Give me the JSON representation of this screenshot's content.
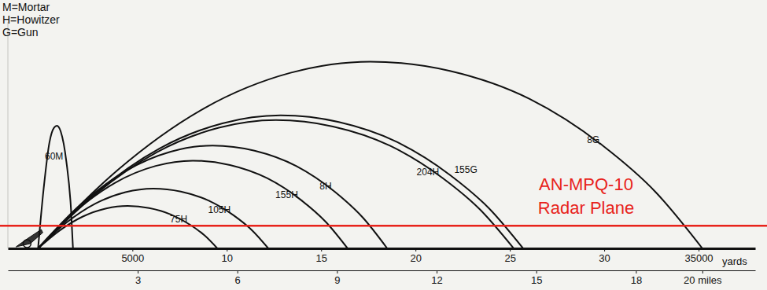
{
  "chart_data": {
    "type": "line",
    "notes": [
      "M=Mortar",
      "H=Howitzer",
      "G=Gun"
    ],
    "x_label": "yards",
    "xlim": [
      -1600,
      38000
    ],
    "xticks": [
      5000,
      {
        "value": 10000,
        "label": "10"
      },
      {
        "value": 15000,
        "label": "15"
      },
      {
        "value": 20000,
        "label": "20"
      },
      {
        "value": 25000,
        "label": "25"
      },
      {
        "value": 30000,
        "label": "30"
      },
      35000
    ],
    "x2lim": [
      -0.909,
      21.591
    ],
    "x2ticks": [
      3,
      6,
      9,
      12,
      15,
      18,
      {
        "value": 20,
        "label": "20 miles"
      }
    ],
    "ylim": [
      0,
      12000
    ],
    "tick_labels": "x",
    "grid": false,
    "series": [
      {
        "name": "60M",
        "color": "#111111",
        "x": [
          0,
          300,
          600,
          850,
          1000,
          1200,
          1500,
          1750,
          1850
        ],
        "values": [
          0,
          3200,
          5600,
          6400,
          6500,
          6200,
          4600,
          2000,
          0
        ]
      },
      {
        "name": "75H",
        "color": "#111111",
        "x": [
          0,
          1140,
          2375,
          3610,
          4750,
          5890,
          7030,
          8075,
          8835,
          9500
        ],
        "values": [
          0,
          945,
          1688,
          2115,
          2250,
          2138,
          1800,
          1238,
          675,
          0
        ]
      },
      {
        "name": "105H",
        "color": "#111111",
        "x": [
          0,
          1464,
          3050,
          4636,
          6100,
          7564,
          9028,
          10370,
          11346,
          12200
        ],
        "values": [
          0,
          1331,
          2378,
          2980,
          3170,
          3012,
          2536,
          1744,
          951,
          0
        ]
      },
      {
        "name": "155H",
        "color": "#111111",
        "x": [
          0,
          1968,
          4100,
          6232,
          8200,
          10168,
          12136,
          13940,
          15252,
          16400
        ],
        "values": [
          0,
          1953,
          3488,
          4371,
          4650,
          4418,
          3720,
          2558,
          1395,
          0
        ]
      },
      {
        "name": "8H",
        "color": "#111111",
        "x": [
          0,
          2220,
          4625,
          7030,
          9250,
          11470,
          13690,
          15725,
          17205,
          18500
        ],
        "values": [
          0,
          2289,
          4088,
          5123,
          5450,
          5178,
          4360,
          2998,
          1635,
          0
        ]
      },
      {
        "name": "204H",
        "color": "#111111",
        "x": [
          0,
          3024,
          6300,
          9576,
          12600,
          15624,
          18648,
          21420,
          23436,
          25200
        ],
        "values": [
          0,
          2856,
          5100,
          6392,
          6800,
          6460,
          5440,
          3740,
          2040,
          0
        ]
      },
      {
        "name": "155G",
        "color": "#111111",
        "x": [
          0,
          3084,
          6425,
          9766,
          12850,
          15934,
          19018,
          21845,
          23901,
          25700
        ],
        "values": [
          0,
          2961,
          5288,
          6627,
          7050,
          6698,
          5640,
          3878,
          2115,
          0
        ]
      },
      {
        "name": "8G",
        "color": "#111111",
        "x": [
          0,
          4224,
          8800,
          13376,
          17600,
          21824,
          26048,
          29920,
          32736,
          35200
        ],
        "values": [
          0,
          4158,
          7425,
          9306,
          9900,
          9405,
          7920,
          5445,
          2970,
          0
        ]
      }
    ],
    "annotations": [
      {
        "lines": [
          "AN-MPQ-10",
          "Radar Plane"
        ],
        "y": 1200,
        "color": "#e8231b"
      }
    ]
  }
}
